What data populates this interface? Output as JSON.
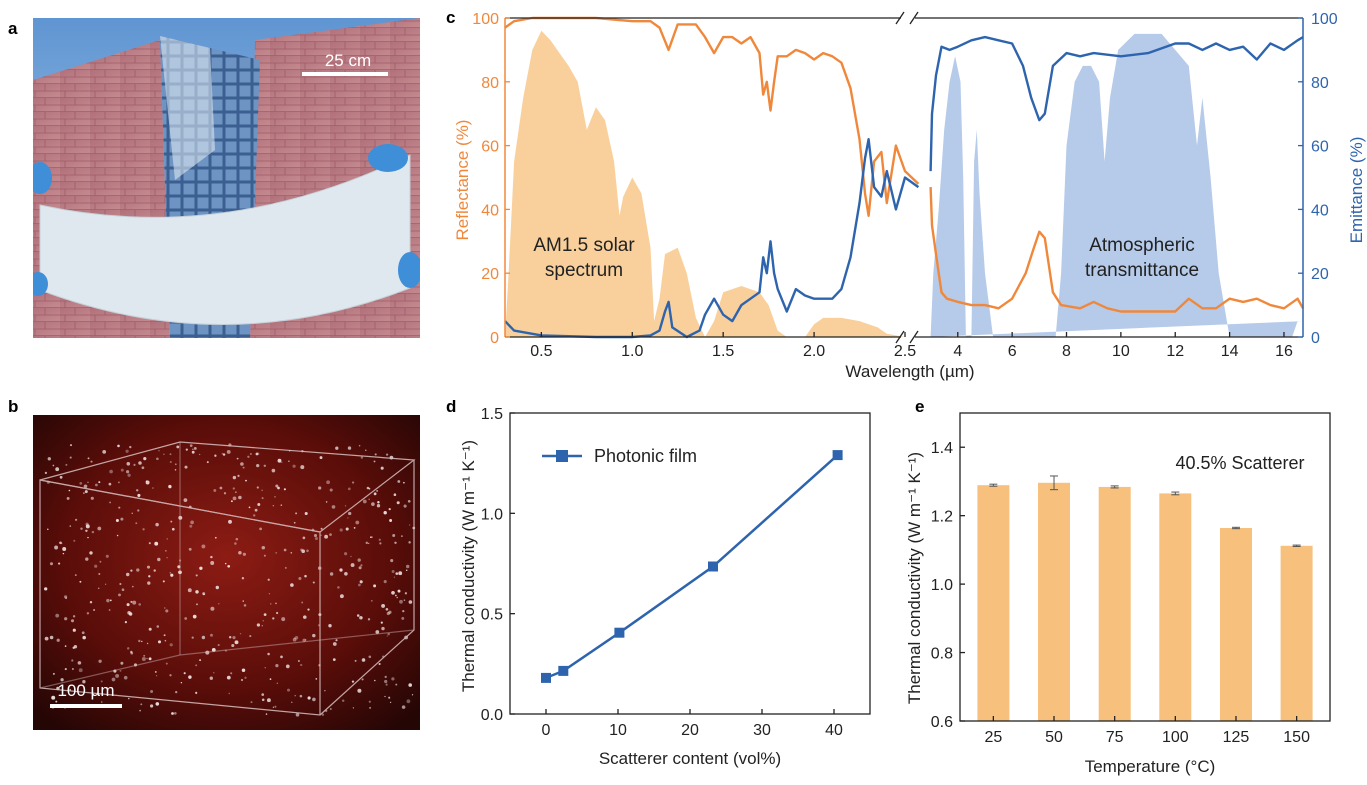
{
  "panels": {
    "a": {
      "label": "a",
      "scale_bar": "25 cm"
    },
    "b": {
      "label": "b",
      "scale_bar": "100 µm"
    },
    "c": {
      "label": "c"
    },
    "d": {
      "label": "d"
    },
    "e": {
      "label": "e"
    }
  },
  "colors": {
    "orange": "#f0883c",
    "blue": "#2e64ae",
    "solar_fill": "#f8c88a",
    "atm_fill": "#9db8e2",
    "bar": "#f7c07c"
  },
  "chart_data": [
    {
      "id": "c",
      "type": "line",
      "xlabel": "Wavelength (µm)",
      "ylabel_left": "Reflectance (%)",
      "ylabel_right": "Emittance (%)",
      "ylim": [
        0,
        100
      ],
      "x_ranges": [
        [
          0.3,
          2.5
        ],
        [
          2.5,
          16.7
        ]
      ],
      "x_ticks_left": [
        0.5,
        1.0,
        1.5,
        2.0,
        2.5
      ],
      "x_tick_labels_left": [
        "0.5",
        "1.0",
        "1.5",
        "2.0",
        "2.5"
      ],
      "x_ticks_right": [
        4,
        6,
        8,
        10,
        12,
        14,
        16
      ],
      "x_tick_labels_right": [
        "4",
        "6",
        "8",
        "10",
        "12",
        "14",
        "16"
      ],
      "y_ticks": [
        0,
        20,
        40,
        60,
        80,
        100
      ],
      "y_tick_labels": [
        "0",
        "20",
        "40",
        "60",
        "80",
        "100"
      ],
      "annotations": {
        "solar_line1": "AM1.5 solar",
        "solar_line2": "spectrum",
        "atm_line1": "Atmospheric",
        "atm_line2": "transmittance"
      },
      "series": [
        {
          "name": "Reflectance",
          "axis": "left",
          "points": [
            [
              0.3,
              97
            ],
            [
              0.35,
              99
            ],
            [
              0.45,
              100
            ],
            [
              0.6,
              100
            ],
            [
              0.8,
              100
            ],
            [
              1.0,
              99
            ],
            [
              1.1,
              99
            ],
            [
              1.15,
              97
            ],
            [
              1.2,
              90
            ],
            [
              1.25,
              98
            ],
            [
              1.35,
              98
            ],
            [
              1.4,
              94
            ],
            [
              1.45,
              89
            ],
            [
              1.5,
              94
            ],
            [
              1.55,
              94
            ],
            [
              1.6,
              92
            ],
            [
              1.65,
              94
            ],
            [
              1.7,
              89
            ],
            [
              1.72,
              76
            ],
            [
              1.74,
              80
            ],
            [
              1.76,
              71
            ],
            [
              1.78,
              80
            ],
            [
              1.8,
              88
            ],
            [
              1.85,
              88
            ],
            [
              1.9,
              90
            ],
            [
              1.95,
              89
            ],
            [
              2.0,
              87
            ],
            [
              2.05,
              89
            ],
            [
              2.1,
              88
            ],
            [
              2.15,
              86
            ],
            [
              2.2,
              78
            ],
            [
              2.25,
              62
            ],
            [
              2.28,
              45
            ],
            [
              2.3,
              38
            ],
            [
              2.33,
              55
            ],
            [
              2.37,
              58
            ],
            [
              2.4,
              42
            ],
            [
              2.45,
              60
            ],
            [
              2.5,
              52
            ],
            [
              2.55,
              48
            ],
            [
              3.0,
              47
            ],
            [
              3.05,
              35
            ],
            [
              3.2,
              26
            ],
            [
              3.4,
              14
            ],
            [
              3.6,
              12
            ],
            [
              4,
              11
            ],
            [
              4.5,
              10
            ],
            [
              5,
              10
            ],
            [
              5.5,
              9
            ],
            [
              6,
              12
            ],
            [
              6.5,
              20
            ],
            [
              6.8,
              28
            ],
            [
              7,
              33
            ],
            [
              7.2,
              31
            ],
            [
              7.5,
              14
            ],
            [
              7.8,
              10
            ],
            [
              8.5,
              9
            ],
            [
              9,
              11
            ],
            [
              9.5,
              9
            ],
            [
              10,
              8
            ],
            [
              11,
              8
            ],
            [
              12,
              8
            ],
            [
              12.5,
              12
            ],
            [
              13,
              9
            ],
            [
              13.5,
              9
            ],
            [
              14,
              12
            ],
            [
              14.5,
              11
            ],
            [
              15,
              12
            ],
            [
              15.5,
              10
            ],
            [
              16,
              9
            ],
            [
              16.5,
              12
            ],
            [
              16.7,
              9
            ]
          ]
        },
        {
          "name": "Emittance",
          "axis": "right",
          "points": [
            [
              0.3,
              5
            ],
            [
              0.35,
              2
            ],
            [
              0.5,
              0.5
            ],
            [
              0.8,
              0
            ],
            [
              1.0,
              0
            ],
            [
              1.1,
              0.5
            ],
            [
              1.15,
              2
            ],
            [
              1.18,
              8
            ],
            [
              1.2,
              11
            ],
            [
              1.22,
              3
            ],
            [
              1.3,
              0
            ],
            [
              1.37,
              2
            ],
            [
              1.4,
              7
            ],
            [
              1.45,
              12
            ],
            [
              1.5,
              7
            ],
            [
              1.55,
              5
            ],
            [
              1.6,
              10
            ],
            [
              1.65,
              12
            ],
            [
              1.7,
              14
            ],
            [
              1.72,
              25
            ],
            [
              1.74,
              20
            ],
            [
              1.76,
              30
            ],
            [
              1.78,
              20
            ],
            [
              1.8,
              15
            ],
            [
              1.85,
              8
            ],
            [
              1.9,
              15
            ],
            [
              1.95,
              13
            ],
            [
              2.0,
              12
            ],
            [
              2.1,
              12
            ],
            [
              2.15,
              15
            ],
            [
              2.2,
              25
            ],
            [
              2.25,
              42
            ],
            [
              2.28,
              56
            ],
            [
              2.3,
              62
            ],
            [
              2.33,
              47
            ],
            [
              2.37,
              44
            ],
            [
              2.4,
              52
            ],
            [
              2.45,
              40
            ],
            [
              2.5,
              50
            ],
            [
              2.55,
              47
            ],
            [
              3.0,
              52
            ],
            [
              3.05,
              70
            ],
            [
              3.2,
              82
            ],
            [
              3.4,
              91
            ],
            [
              3.7,
              90
            ],
            [
              4,
              91
            ],
            [
              4.5,
              93
            ],
            [
              5,
              94
            ],
            [
              5.5,
              93
            ],
            [
              6,
              92
            ],
            [
              6.4,
              85
            ],
            [
              6.7,
              75
            ],
            [
              7,
              68
            ],
            [
              7.2,
              70
            ],
            [
              7.5,
              85
            ],
            [
              8,
              89
            ],
            [
              8.5,
              88
            ],
            [
              9,
              89
            ],
            [
              10,
              88
            ],
            [
              11,
              89
            ],
            [
              12,
              92
            ],
            [
              12.5,
              92
            ],
            [
              13,
              90
            ],
            [
              13.5,
              92
            ],
            [
              14,
              90
            ],
            [
              14.5,
              91
            ],
            [
              15,
              87
            ],
            [
              15.5,
              92
            ],
            [
              16,
              90
            ],
            [
              16.5,
              93
            ],
            [
              16.7,
              94
            ]
          ]
        }
      ],
      "fills": [
        {
          "name": "AM1.5 solar spectrum",
          "points": [
            [
              0.3,
              0
            ],
            [
              0.32,
              20
            ],
            [
              0.35,
              55
            ],
            [
              0.4,
              75
            ],
            [
              0.45,
              90
            ],
            [
              0.5,
              96
            ],
            [
              0.55,
              93
            ],
            [
              0.6,
              89
            ],
            [
              0.65,
              85
            ],
            [
              0.7,
              80
            ],
            [
              0.75,
              65
            ],
            [
              0.8,
              72
            ],
            [
              0.85,
              68
            ],
            [
              0.9,
              55
            ],
            [
              0.93,
              38
            ],
            [
              0.95,
              44
            ],
            [
              1.0,
              50
            ],
            [
              1.05,
              45
            ],
            [
              1.1,
              28
            ],
            [
              1.12,
              5
            ],
            [
              1.15,
              12
            ],
            [
              1.18,
              26
            ],
            [
              1.25,
              28
            ],
            [
              1.3,
              20
            ],
            [
              1.35,
              6
            ],
            [
              1.4,
              0
            ],
            [
              1.45,
              5
            ],
            [
              1.5,
              14
            ],
            [
              1.6,
              16
            ],
            [
              1.7,
              14
            ],
            [
              1.75,
              10
            ],
            [
              1.8,
              2
            ],
            [
              1.85,
              0
            ],
            [
              1.95,
              0
            ],
            [
              2.0,
              4
            ],
            [
              2.05,
              6
            ],
            [
              2.15,
              6
            ],
            [
              2.25,
              5
            ],
            [
              2.35,
              3
            ],
            [
              2.4,
              1
            ],
            [
              2.5,
              0
            ]
          ]
        },
        {
          "name": "Atmospheric transmittance",
          "points": [
            [
              3.0,
              0
            ],
            [
              3.1,
              20
            ],
            [
              3.3,
              40
            ],
            [
              3.5,
              65
            ],
            [
              3.7,
              80
            ],
            [
              3.9,
              88
            ],
            [
              4.1,
              80
            ],
            [
              4.2,
              50
            ],
            [
              4.3,
              0
            ],
            [
              4.5,
              0
            ],
            [
              4.6,
              55
            ],
            [
              4.7,
              65
            ],
            [
              4.8,
              45
            ],
            [
              5.0,
              20
            ],
            [
              5.3,
              0
            ],
            [
              7.6,
              0
            ],
            [
              7.8,
              20
            ],
            [
              8.0,
              60
            ],
            [
              8.3,
              80
            ],
            [
              8.6,
              85
            ],
            [
              8.9,
              85
            ],
            [
              9.2,
              80
            ],
            [
              9.4,
              55
            ],
            [
              9.6,
              75
            ],
            [
              9.9,
              90
            ],
            [
              10.5,
              95
            ],
            [
              11,
              95
            ],
            [
              11.5,
              95
            ],
            [
              12,
              90
            ],
            [
              12.5,
              85
            ],
            [
              12.8,
              60
            ],
            [
              13,
              75
            ],
            [
              13.3,
              50
            ],
            [
              13.6,
              20
            ],
            [
              14,
              0
            ],
            [
              16.3,
              0
            ],
            [
              16.5,
              5
            ],
            [
              16.7,
              5
            ]
          ]
        }
      ]
    },
    {
      "id": "d",
      "type": "line",
      "xlabel": "Scatterer content (vol%)",
      "ylabel": "Thermal conductivity (W m⁻¹ K⁻¹)",
      "xlim": [
        -5,
        45
      ],
      "ylim": [
        0,
        1.5
      ],
      "x_ticks": [
        0,
        10,
        20,
        30,
        40
      ],
      "x_tick_labels": [
        "0",
        "10",
        "20",
        "30",
        "40"
      ],
      "y_ticks": [
        0,
        0.5,
        1.0,
        1.5
      ],
      "y_tick_labels": [
        "0.0",
        "0.5",
        "1.0",
        "1.5"
      ],
      "legend_position": "top-left",
      "series": [
        {
          "name": "Photonic film",
          "x": [
            0,
            2.4,
            10.2,
            23.2,
            40.5
          ],
          "y": [
            0.18,
            0.215,
            0.405,
            0.735,
            1.29
          ]
        }
      ]
    },
    {
      "id": "e",
      "type": "bar",
      "xlabel": "Temperature (°C)",
      "ylabel": "Thermal conductivity (W m⁻¹ K⁻¹)",
      "annotation": "40.5% Scatterer",
      "ylim": [
        0.6,
        1.5
      ],
      "y_ticks": [
        0.6,
        0.8,
        1.0,
        1.2,
        1.4
      ],
      "y_tick_labels": [
        "0.6",
        "0.8",
        "1.0",
        "1.2",
        "1.4"
      ],
      "categories": [
        "25",
        "50",
        "75",
        "100",
        "125",
        "150"
      ],
      "values": [
        1.289,
        1.296,
        1.284,
        1.265,
        1.164,
        1.112
      ],
      "errors": [
        0.003,
        0.02,
        0.003,
        0.004,
        0.002,
        0.002
      ]
    }
  ]
}
